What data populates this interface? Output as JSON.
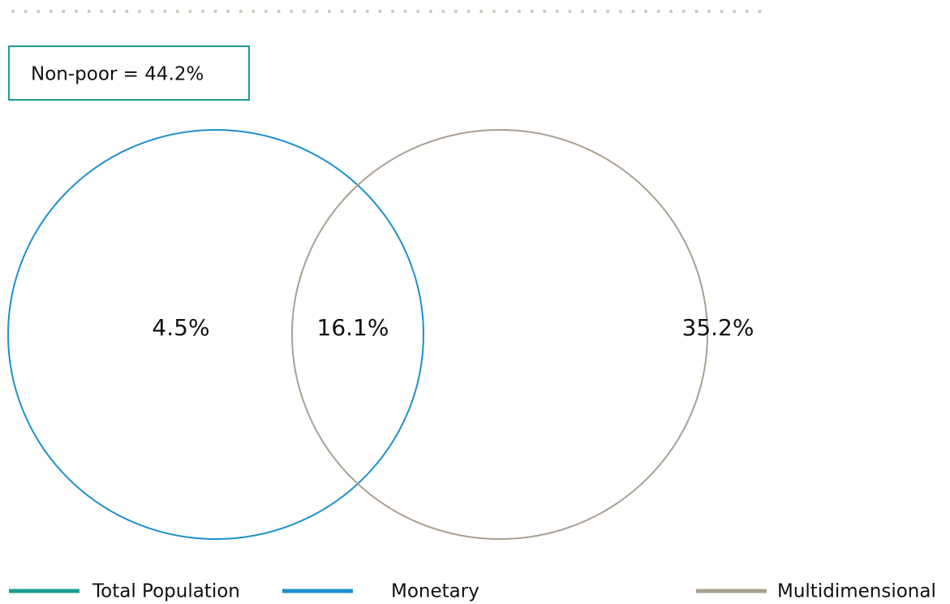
{
  "box": {
    "label": "Non-poor = 44.2%",
    "color": "#1a9e8f"
  },
  "circles": [
    {
      "name": "monetary",
      "color": "#1e90cc"
    },
    {
      "name": "multidimensional",
      "color": "#aa9f92"
    }
  ],
  "regions": [
    {
      "label": "4.5%"
    },
    {
      "label": "16.1%"
    },
    {
      "label": "35.2%"
    }
  ],
  "legend": [
    {
      "label": "Total Population",
      "color": "#1a9e8f"
    },
    {
      "label": "Monetary",
      "color": "#1e90cc"
    },
    {
      "label": "Multidimensional",
      "color": "#aa9f92"
    }
  ]
}
